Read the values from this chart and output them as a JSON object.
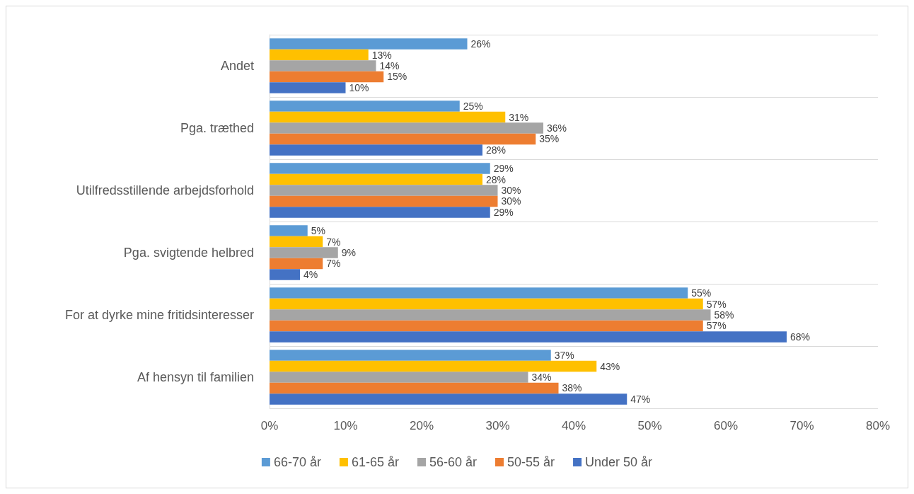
{
  "chart_data": {
    "type": "bar",
    "orientation": "horizontal",
    "categories": [
      "Andet",
      "Pga. træthed",
      "Utilfredsstillende arbejdsforhold",
      "Pga. svigtende helbred",
      "For at dyrke mine fritidsinteresser",
      "Af hensyn til familien"
    ],
    "series": [
      {
        "name": "66-70 år",
        "color": "#5b9bd5",
        "values": [
          26,
          25,
          29,
          5,
          55,
          37
        ],
        "value_labels": [
          "26%",
          "25%",
          "29%",
          "5%",
          "55%",
          "37%"
        ]
      },
      {
        "name": "61-65 år",
        "color": "#ffc000",
        "values": [
          13,
          31,
          28,
          7,
          57,
          43
        ],
        "value_labels": [
          "13%",
          "31%",
          "28%",
          "7%",
          "57%",
          "43%"
        ]
      },
      {
        "name": "56-60 år",
        "color": "#a5a5a5",
        "values": [
          14,
          36,
          30,
          9,
          58,
          34
        ],
        "value_labels": [
          "14%",
          "36%",
          "30%",
          "9%",
          "58%",
          "34%"
        ]
      },
      {
        "name": "50-55 år",
        "color": "#ed7d31",
        "values": [
          15,
          35,
          30,
          7,
          57,
          38
        ],
        "value_labels": [
          "15%",
          "35%",
          "30%",
          "7%",
          "57%",
          "38%"
        ]
      },
      {
        "name": "Under 50 år",
        "color": "#4472c4",
        "values": [
          10,
          28,
          29,
          4,
          68,
          47
        ],
        "value_labels": [
          "10%",
          "28%",
          "29%",
          "4%",
          "68%",
          "47%"
        ]
      }
    ],
    "xlim": [
      0,
      80
    ],
    "xticks": [
      {
        "value": 0,
        "label": "0%"
      },
      {
        "value": 10,
        "label": "10%"
      },
      {
        "value": 20,
        "label": "20%"
      },
      {
        "value": 30,
        "label": "30%"
      },
      {
        "value": 40,
        "label": "40%"
      },
      {
        "value": 50,
        "label": "50%"
      },
      {
        "value": 60,
        "label": "60%"
      },
      {
        "value": 70,
        "label": "70%"
      },
      {
        "value": 80,
        "label": "80%"
      }
    ],
    "grid": "y",
    "legend": "bottom"
  }
}
